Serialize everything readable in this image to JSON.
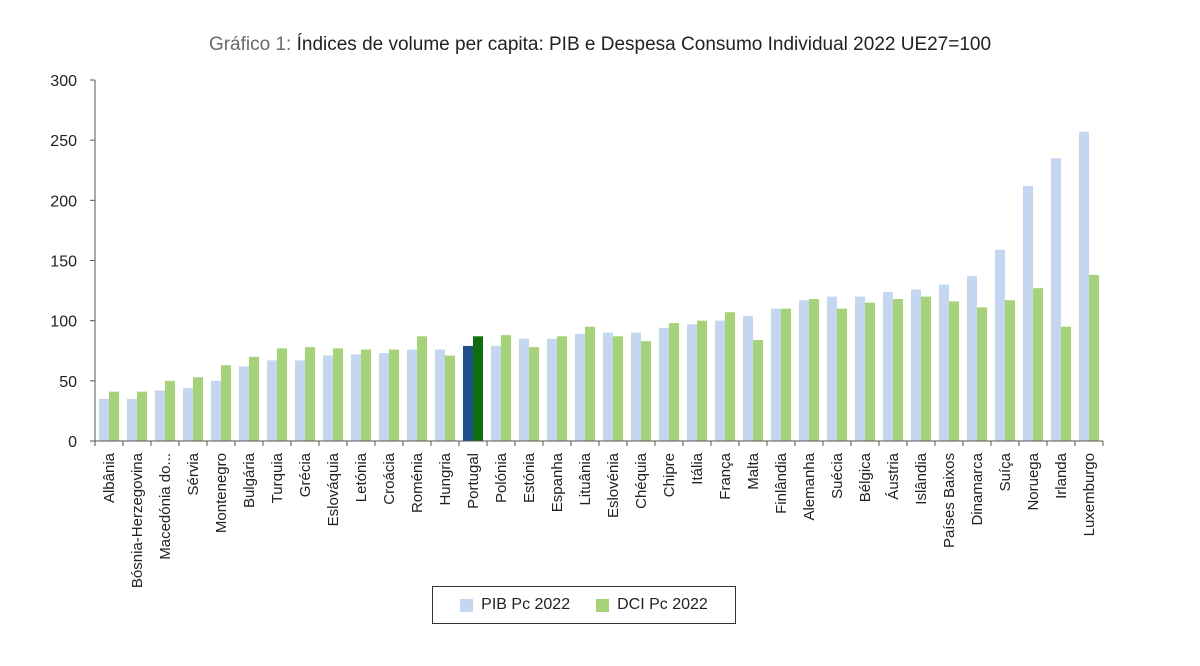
{
  "title_prefix": "Gráfico 1:",
  "title_main": "Índices de volume per capita: PIB e Despesa Consumo Individual 2022 UE27=100",
  "chart_data": {
    "type": "bar",
    "title": "Gráfico 1: Índices de volume per capita: PIB e Despesa Consumo Individual 2022 UE27=100",
    "categories": [
      "Albânia",
      "Bósnia-Herzegovina",
      "Macedónia do...",
      "Sérvia",
      "Montenegro",
      "Bulgária",
      "Turquia",
      "Grécia",
      "Eslováquia",
      "Letónia",
      "Croácia",
      "Roménia",
      "Hungria",
      "Portugal",
      "Polónia",
      "Estónia",
      "Espanha",
      "Lituânia",
      "Eslovénia",
      "Chéquia",
      "Chipre",
      "Itália",
      "França",
      "Malta",
      "Finlândia",
      "Alemanha",
      "Suécia",
      "Bélgica",
      "Áustria",
      "Islândia",
      "Países Baixos",
      "Dinamarca",
      "Suíça",
      "Noruega",
      "Irlanda",
      "Luxemburgo"
    ],
    "series": [
      {
        "name": "PIB Pc 2022",
        "color": "#c5d7f0",
        "values": [
          35,
          35,
          42,
          44,
          50,
          62,
          67,
          67,
          71,
          72,
          73,
          76,
          76,
          79,
          79,
          85,
          85,
          89,
          90,
          90,
          94,
          97,
          100,
          104,
          110,
          117,
          120,
          120,
          124,
          126,
          130,
          137,
          159,
          212,
          235,
          257
        ]
      },
      {
        "name": "DCI Pc 2022",
        "color": "#a6d37a",
        "values": [
          41,
          41,
          50,
          53,
          63,
          70,
          77,
          78,
          77,
          76,
          76,
          87,
          71,
          87,
          88,
          78,
          87,
          95,
          87,
          83,
          98,
          100,
          107,
          84,
          110,
          118,
          110,
          115,
          118,
          120,
          116,
          111,
          117,
          127,
          95,
          138
        ]
      }
    ],
    "highlight": {
      "category": "Portugal",
      "colors": [
        "#1f4e8c",
        "#0f6e12"
      ]
    },
    "yticks": [
      0,
      50,
      100,
      150,
      200,
      250,
      300
    ],
    "ylim": [
      0,
      300
    ],
    "legend": "bottom-center"
  }
}
